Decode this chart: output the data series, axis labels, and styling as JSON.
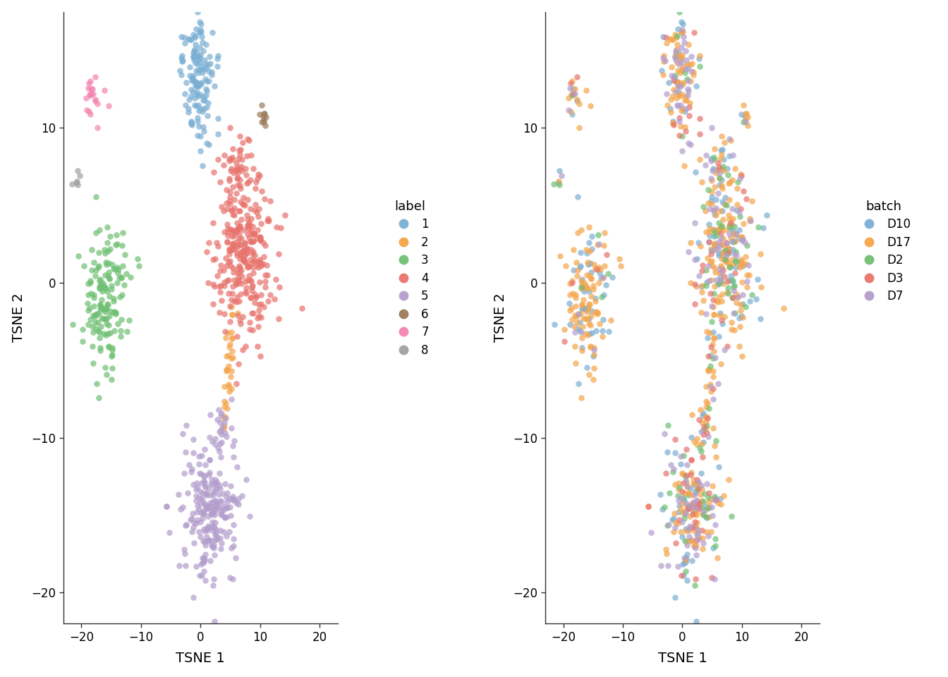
{
  "label_colors": {
    "1": "#7BAFD4",
    "2": "#F5A54A",
    "3": "#6EBF71",
    "4": "#E8736C",
    "5": "#B39DCC",
    "6": "#9B7B5B",
    "7": "#F384B0",
    "8": "#A0A0A0"
  },
  "batch_colors": {
    "D10": "#7BAFD4",
    "D17": "#F5A54A",
    "D2": "#6EBF71",
    "D3": "#E8736C",
    "D7": "#B39DCC"
  },
  "xlim": [
    -23,
    23
  ],
  "ylim": [
    -22,
    17.5
  ],
  "xticks": [
    -20,
    -10,
    0,
    10,
    20
  ],
  "yticks": [
    -20,
    -10,
    0,
    10
  ],
  "xlabel": "TSNE 1",
  "ylabel": "TSNE 2",
  "legend_title_left": "label",
  "legend_title_right": "batch",
  "point_size": 38,
  "alpha": 0.7,
  "background_color": "#ffffff"
}
